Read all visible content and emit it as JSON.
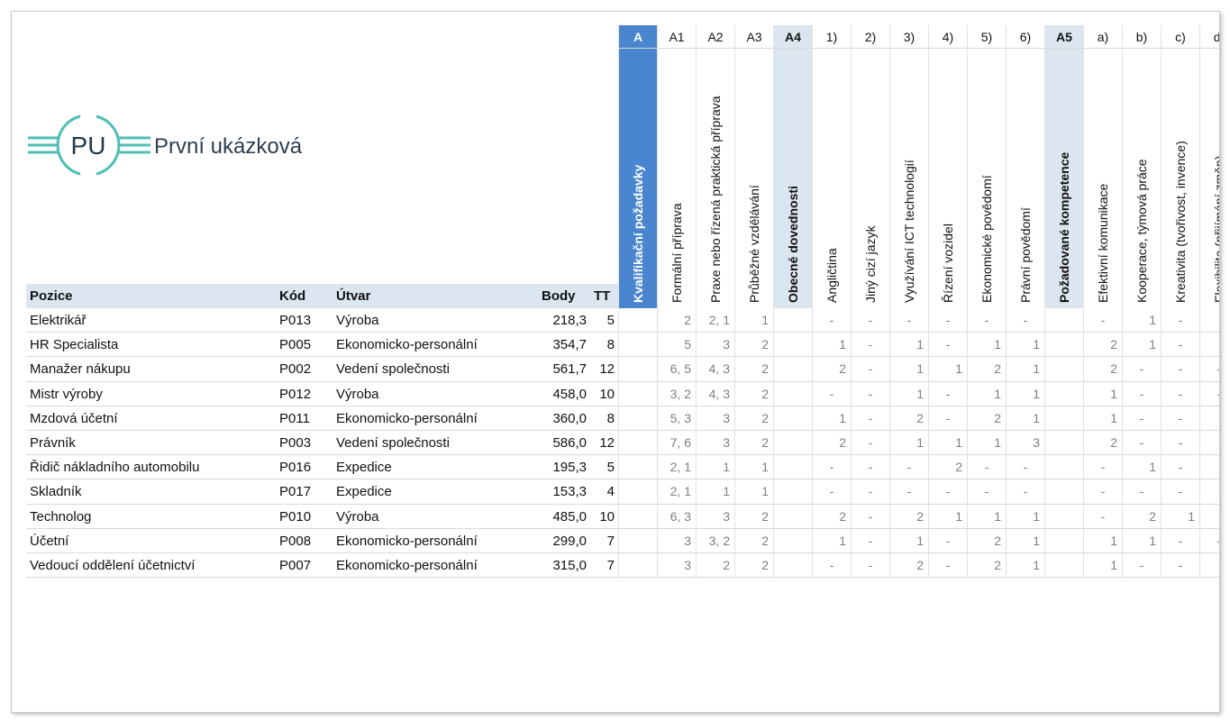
{
  "logo": {
    "mark": "PU",
    "name": "První ukázková"
  },
  "table": {
    "columns": [
      "Pozice",
      "Kód",
      "Útvar",
      "Body",
      "TT"
    ],
    "criteria": [
      {
        "code": "A",
        "label": "Kvalifikační požadavky",
        "kind": "section"
      },
      {
        "code": "A1",
        "label": "Formální příprava",
        "kind": "item"
      },
      {
        "code": "A2",
        "label": "Praxe nebo řízená praktická příprava",
        "kind": "item"
      },
      {
        "code": "A3",
        "label": "Průběžné vzdělávání",
        "kind": "item"
      },
      {
        "code": "A4",
        "label": "Obecné dovednosti",
        "kind": "group"
      },
      {
        "code": "1)",
        "label": "Angličtina",
        "kind": "item"
      },
      {
        "code": "2)",
        "label": "Jiný cizí jazyk",
        "kind": "item"
      },
      {
        "code": "3)",
        "label": "Využívání ICT technologií",
        "kind": "item"
      },
      {
        "code": "4)",
        "label": "Řízení vozidel",
        "kind": "item"
      },
      {
        "code": "5)",
        "label": "Ekonomické povědomí",
        "kind": "item"
      },
      {
        "code": "6)",
        "label": "Právní povědomí",
        "kind": "item"
      },
      {
        "code": "A5",
        "label": "Požadované kompetence",
        "kind": "group"
      },
      {
        "code": "a)",
        "label": "Efektivní komunikace",
        "kind": "item"
      },
      {
        "code": "b)",
        "label": "Kooperace, týmová práce",
        "kind": "item"
      },
      {
        "code": "c)",
        "label": "Kreativita (tvořivost, invence)",
        "kind": "item"
      },
      {
        "code": "d)",
        "label": "Flexibilita (přijímání změn)",
        "kind": "item"
      }
    ],
    "rows": [
      {
        "cells": [
          "Elektrikář",
          "P013",
          "Výroba",
          "218,3",
          "5"
        ],
        "scores": [
          null,
          "2",
          "2, 1",
          "1",
          null,
          "-",
          "-",
          "-",
          "-",
          "-",
          "-",
          null,
          "-",
          "1",
          "-",
          null
        ]
      },
      {
        "cells": [
          "HR Specialista",
          "P005",
          "Ekonomicko-personální",
          "354,7",
          "8"
        ],
        "scores": [
          null,
          "5",
          "3",
          "2",
          null,
          "1",
          "-",
          "1",
          "-",
          "1",
          "1",
          null,
          "2",
          "1",
          "-",
          null
        ]
      },
      {
        "cells": [
          "Manažer nákupu",
          "P002",
          "Vedení společnosti",
          "561,7",
          "12"
        ],
        "scores": [
          null,
          "6, 5",
          "4, 3",
          "2",
          null,
          "2",
          "-",
          "1",
          "1",
          "2",
          "1",
          null,
          "2",
          "-",
          "-",
          "-"
        ]
      },
      {
        "cells": [
          "Mistr výroby",
          "P012",
          "Výroba",
          "458,0",
          "10"
        ],
        "scores": [
          null,
          "3, 2",
          "4, 3",
          "2",
          null,
          "-",
          "-",
          "1",
          "-",
          "1",
          "1",
          null,
          "1",
          "-",
          "-",
          "-"
        ]
      },
      {
        "cells": [
          "Mzdová účetní",
          "P011",
          "Ekonomicko-personální",
          "360,0",
          "8"
        ],
        "scores": [
          null,
          "5, 3",
          "3",
          "2",
          null,
          "1",
          "-",
          "2",
          "-",
          "2",
          "1",
          null,
          "1",
          "-",
          "-",
          null
        ]
      },
      {
        "cells": [
          "Právník",
          "P003",
          "Vedení společnosti",
          "586,0",
          "12"
        ],
        "scores": [
          null,
          "7, 6",
          "3",
          "2",
          null,
          "2",
          "-",
          "1",
          "1",
          "1",
          "3",
          null,
          "2",
          "-",
          "-",
          null
        ]
      },
      {
        "cells": [
          "Řidič nákladního automobilu",
          "P016",
          "Expedice",
          "195,3",
          "5"
        ],
        "scores": [
          null,
          "2, 1",
          "1",
          "1",
          null,
          "-",
          "-",
          "-",
          "2",
          "-",
          "-",
          null,
          "-",
          "1",
          "-",
          null
        ]
      },
      {
        "cells": [
          "Skladník",
          "P017",
          "Expedice",
          "153,3",
          "4"
        ],
        "scores": [
          null,
          "2, 1",
          "1",
          "1",
          null,
          "-",
          "-",
          "-",
          "-",
          "-",
          "-",
          null,
          "-",
          "-",
          "-",
          null
        ]
      },
      {
        "cells": [
          "Technolog",
          "P010",
          "Výroba",
          "485,0",
          "10"
        ],
        "scores": [
          null,
          "6, 3",
          "3",
          "2",
          null,
          "2",
          "-",
          "2",
          "1",
          "1",
          "1",
          null,
          "-",
          "2",
          "1",
          null
        ]
      },
      {
        "cells": [
          "Účetní",
          "P008",
          "Ekonomicko-personální",
          "299,0",
          "7"
        ],
        "scores": [
          null,
          "3",
          "3, 2",
          "2",
          null,
          "1",
          "-",
          "1",
          "-",
          "2",
          "1",
          null,
          "1",
          "1",
          "-",
          "-"
        ]
      },
      {
        "cells": [
          "Vedoucí oddělení účetnictví",
          "P007",
          "Ekonomicko-personální",
          "315,0",
          "7"
        ],
        "scores": [
          null,
          "3",
          "2",
          "2",
          null,
          "-",
          "-",
          "2",
          "-",
          "2",
          "1",
          null,
          "1",
          "-",
          "-",
          null
        ]
      }
    ]
  }
}
